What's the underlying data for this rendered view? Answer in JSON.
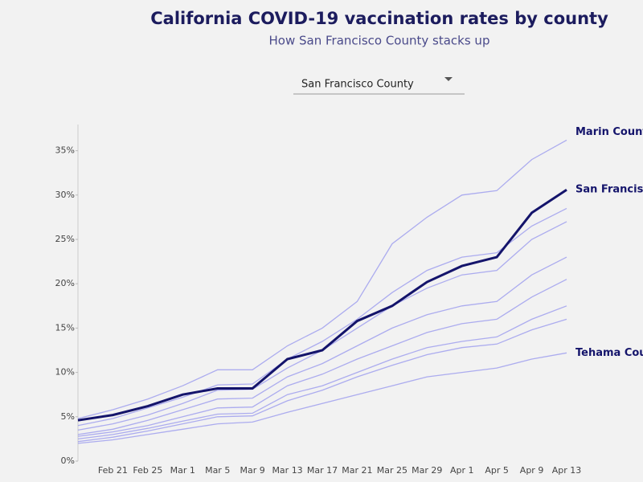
{
  "chart_data": {
    "type": "line",
    "title": "California COVID-19 vaccination rates by county",
    "subtitle": "How San Francisco County stacks up",
    "categories": [
      null,
      "Feb 21",
      "Feb 25",
      "Mar 1",
      "Mar 5",
      "Mar 9",
      "Mar 13",
      "Mar 17",
      "Mar 21",
      "Mar 25",
      "Mar 29",
      "Apr 1",
      "Apr 5",
      "Apr 9",
      "Apr 13"
    ],
    "ylim": [
      0,
      37.5
    ],
    "yticks": [
      {
        "value": 0,
        "label": "0%"
      },
      {
        "value": 5,
        "label": "5%"
      },
      {
        "value": 10,
        "label": "10%"
      },
      {
        "value": 15,
        "label": "15%"
      },
      {
        "value": 20,
        "label": "20%"
      },
      {
        "value": 25,
        "label": "25%"
      },
      {
        "value": 30,
        "label": "30%"
      },
      {
        "value": 35,
        "label": "35%"
      }
    ],
    "series": [
      {
        "color": "#9a9aee",
        "values": [
          3.5,
          4.2,
          5.2,
          6.5,
          8.0,
          8.1,
          10.5,
          12.5,
          15.0,
          17.5,
          19.5,
          21.0,
          21.5,
          25.0,
          27.0
        ]
      },
      {
        "color": "#9a9aee",
        "values": [
          3.0,
          3.6,
          4.6,
          5.8,
          7.0,
          7.1,
          9.5,
          11.0,
          13.0,
          15.0,
          16.5,
          17.5,
          18.0,
          21.0,
          23.0
        ]
      },
      {
        "color": "#9a9aee",
        "values": [
          2.8,
          3.3,
          4.0,
          5.0,
          6.0,
          6.1,
          8.5,
          9.8,
          11.5,
          13.0,
          14.5,
          15.5,
          16.0,
          18.5,
          20.5
        ]
      },
      {
        "color": "#9a9aee",
        "values": [
          2.5,
          3.0,
          3.7,
          4.5,
          5.3,
          5.4,
          7.5,
          8.5,
          10.0,
          11.5,
          12.8,
          13.5,
          14.0,
          16.0,
          17.5
        ]
      },
      {
        "color": "#9a9aee",
        "values": [
          4.0,
          4.8,
          6.0,
          7.2,
          8.6,
          8.7,
          11.5,
          13.5,
          16.0,
          19.0,
          21.5,
          23.0,
          23.5,
          26.5,
          28.5
        ]
      },
      {
        "color": "#9a9aee",
        "values": [
          2.2,
          2.7,
          3.4,
          4.2,
          5.0,
          5.1,
          6.8,
          8.0,
          9.5,
          10.8,
          12.0,
          12.8,
          13.2,
          14.8,
          16.0
        ]
      },
      {
        "name": "Marin County",
        "color": "#9a9aee",
        "values": [
          4.8,
          5.8,
          7.0,
          8.5,
          10.3,
          10.3,
          13.0,
          15.0,
          18.0,
          24.5,
          27.5,
          30.0,
          30.5,
          34.0,
          36.2
        ]
      },
      {
        "name": "Tehama County",
        "color": "#9a9aee",
        "values": [
          2.0,
          2.4,
          3.0,
          3.6,
          4.2,
          4.4,
          5.5,
          6.5,
          7.5,
          8.5,
          9.5,
          10.0,
          10.5,
          11.5,
          12.2
        ]
      },
      {
        "name": "San Francisco County",
        "color": "#14146b",
        "values": [
          4.6,
          5.2,
          6.2,
          7.5,
          8.2,
          8.2,
          11.5,
          12.5,
          15.8,
          17.5,
          20.2,
          22.0,
          23.0,
          28.0,
          30.6
        ]
      }
    ]
  },
  "controls": {
    "county_select": "San Francisco County"
  }
}
